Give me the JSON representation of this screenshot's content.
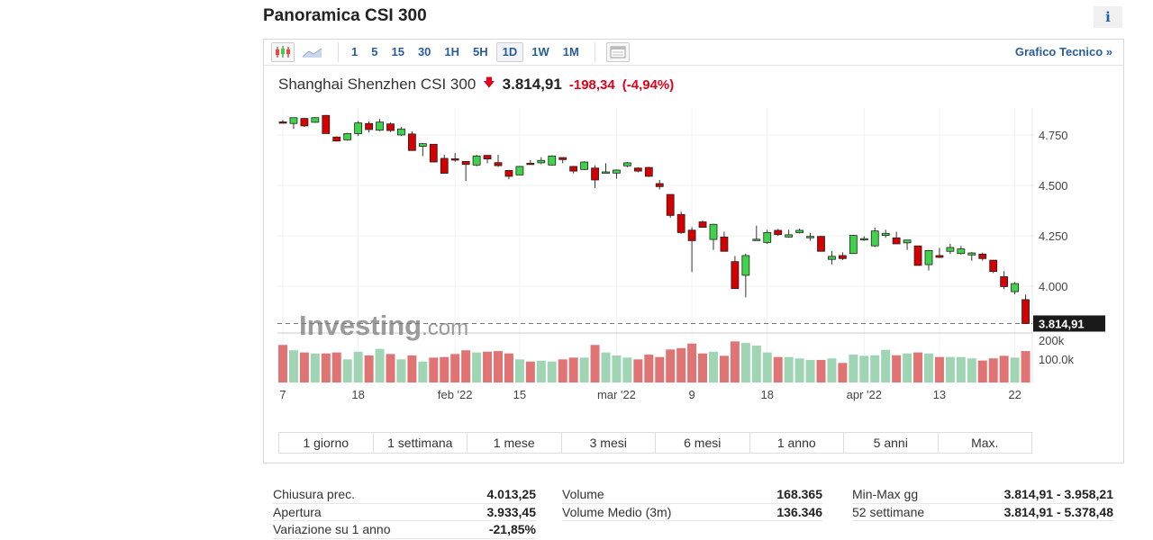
{
  "header": {
    "title": "Panoramica CSI 300",
    "info_label": "i"
  },
  "toolbar": {
    "intervals": [
      "1",
      "5",
      "15",
      "30",
      "1H",
      "5H",
      "1D",
      "1W",
      "1M"
    ],
    "active": "1D",
    "tech_link": "Grafico Tecnico »"
  },
  "quote": {
    "name": "Shanghai Shenzhen CSI 300",
    "price": "3.814,91",
    "change": "-198,34",
    "change_pct": "(-4,94%)",
    "direction": "down"
  },
  "colors": {
    "up": "#3fd34a",
    "down": "#d40000",
    "vol_up": "#9fd4b4",
    "vol_down": "#e07474",
    "link": "#2a5c9a",
    "negative": "#e0001b"
  },
  "chart_data": {
    "type": "candlestick",
    "y_ticks": [
      "4.750",
      "4.500",
      "4.250",
      "4.000"
    ],
    "y_tick_values": [
      4750,
      4500,
      4250,
      4000
    ],
    "last_price_label": "3.814,91",
    "last_price": 3814.91,
    "volume_ticks": [
      "200k",
      "100.0k"
    ],
    "volume_tick_values": [
      200,
      100
    ],
    "x_labels": [
      {
        "i": 0,
        "t": "7"
      },
      {
        "i": 7,
        "t": "18"
      },
      {
        "i": 16,
        "t": "feb '22"
      },
      {
        "i": 22,
        "t": "15"
      },
      {
        "i": 31,
        "t": "mar '22"
      },
      {
        "i": 38,
        "t": "9"
      },
      {
        "i": 45,
        "t": "18"
      },
      {
        "i": 54,
        "t": "apr '22"
      },
      {
        "i": 61,
        "t": "13"
      },
      {
        "i": 68,
        "t": "22"
      }
    ],
    "ohlc": [
      [
        4815,
        4824,
        4812,
        4813
      ],
      [
        4807,
        4836,
        4780,
        4836
      ],
      [
        4832,
        4836,
        4790,
        4795
      ],
      [
        4813,
        4839,
        4810,
        4836
      ],
      [
        4847,
        4850,
        4757,
        4757
      ],
      [
        4740,
        4743,
        4718,
        4720
      ],
      [
        4726,
        4760,
        4722,
        4757
      ],
      [
        4757,
        4820,
        4745,
        4810
      ],
      [
        4807,
        4817,
        4762,
        4777
      ],
      [
        4774,
        4830,
        4770,
        4814
      ],
      [
        4805,
        4812,
        4765,
        4772
      ],
      [
        4750,
        4790,
        4745,
        4780
      ],
      [
        4755,
        4768,
        4673,
        4673
      ],
      [
        4694,
        4710,
        4645,
        4707
      ],
      [
        4704,
        4704,
        4616,
        4616
      ],
      [
        4634,
        4652,
        4560,
        4560
      ],
      [
        4632,
        4660,
        4617,
        4630
      ],
      [
        4619,
        4619,
        4522,
        4604
      ],
      [
        4601,
        4652,
        4595,
        4646
      ],
      [
        4649,
        4649,
        4610,
        4631
      ],
      [
        4613,
        4652,
        4592,
        4598
      ],
      [
        4574,
        4577,
        4530,
        4545
      ],
      [
        4552,
        4597,
        4550,
        4594
      ],
      [
        4610,
        4625,
        4605,
        4608
      ],
      [
        4612,
        4640,
        4605,
        4624
      ],
      [
        4601,
        4649,
        4598,
        4646
      ],
      [
        4638,
        4640,
        4610,
        4628
      ],
      [
        4594,
        4597,
        4560,
        4571
      ],
      [
        4579,
        4620,
        4576,
        4616
      ],
      [
        4586,
        4600,
        4487,
        4527
      ],
      [
        4565,
        4610,
        4563,
        4567
      ],
      [
        4561,
        4579,
        4533,
        4576
      ],
      [
        4597,
        4616,
        4590,
        4612
      ],
      [
        4586,
        4590,
        4565,
        4571
      ],
      [
        4589,
        4592,
        4542,
        4545
      ],
      [
        4509,
        4527,
        4480,
        4494
      ],
      [
        4455,
        4455,
        4340,
        4351
      ],
      [
        4356,
        4370,
        4260,
        4266
      ],
      [
        4278,
        4293,
        4070,
        4226
      ],
      [
        4319,
        4325,
        4290,
        4292
      ],
      [
        4232,
        4310,
        4180,
        4307
      ],
      [
        4244,
        4270,
        4173,
        4173
      ],
      [
        4122,
        4150,
        3988,
        3988
      ],
      [
        4054,
        4162,
        3945,
        4152
      ],
      [
        4230,
        4300,
        4228,
        4233
      ],
      [
        4217,
        4280,
        4210,
        4266
      ],
      [
        4277,
        4284,
        4250,
        4256
      ],
      [
        4244,
        4280,
        4240,
        4255
      ],
      [
        4266,
        4286,
        4262,
        4277
      ],
      [
        4240,
        4265,
        4225,
        4247
      ],
      [
        4247,
        4250,
        4173,
        4173
      ],
      [
        4133,
        4175,
        4108,
        4148
      ],
      [
        4152,
        4168,
        4130,
        4137
      ],
      [
        4162,
        4255,
        4160,
        4252
      ],
      [
        4233,
        4248,
        4225,
        4236
      ],
      [
        4200,
        4290,
        4195,
        4274
      ],
      [
        4252,
        4280,
        4240,
        4262
      ],
      [
        4240,
        4270,
        4210,
        4210
      ],
      [
        4215,
        4229,
        4180,
        4229
      ],
      [
        4200,
        4200,
        4103,
        4103
      ],
      [
        4107,
        4180,
        4078,
        4177
      ],
      [
        4152,
        4190,
        4140,
        4143
      ],
      [
        4173,
        4210,
        4160,
        4192
      ],
      [
        4162,
        4200,
        4157,
        4185
      ],
      [
        4155,
        4170,
        4126,
        4165
      ],
      [
        4159,
        4167,
        4127,
        4137
      ],
      [
        4129,
        4130,
        4065,
        4073
      ],
      [
        4047,
        4075,
        3985,
        3998
      ],
      [
        3973,
        4020,
        3960,
        4013
      ],
      [
        3933.45,
        3958.21,
        3814.91,
        3814.91
      ]
    ],
    "volume_k": [
      199,
      172,
      161,
      156,
      156,
      161,
      126,
      165,
      146,
      179,
      153,
      126,
      146,
      115,
      135,
      138,
      153,
      172,
      161,
      165,
      168,
      156,
      126,
      115,
      119,
      115,
      126,
      135,
      135,
      199,
      161,
      146,
      135,
      126,
      150,
      138,
      176,
      183,
      206,
      156,
      165,
      144,
      217,
      209,
      196,
      161,
      138,
      138,
      131,
      123,
      123,
      131,
      108,
      150,
      144,
      147,
      174,
      147,
      156,
      161,
      156,
      138,
      138,
      138,
      131,
      120,
      131,
      144,
      135,
      168
    ],
    "watermark": "Investing.com"
  },
  "ranges": [
    "1 giorno",
    "1 settimana",
    "1 mese",
    "3 mesi",
    "6 mesi",
    "1 anno",
    "5 anni",
    "Max."
  ],
  "stats": {
    "col1": [
      {
        "label": "Chiusura prec.",
        "value": "4.013,25"
      },
      {
        "label": "Apertura",
        "value": "3.933,45"
      },
      {
        "label": "Variazione su 1 anno",
        "value": "-21,85%"
      }
    ],
    "col2": [
      {
        "label": "Volume",
        "value": "168.365"
      },
      {
        "label": "Volume Medio (3m)",
        "value": "136.346"
      }
    ],
    "col3": [
      {
        "label": "Min-Max gg",
        "value": "3.814,91 - 3.958,21"
      },
      {
        "label": "52 settimane",
        "value": "3.814,91 - 5.378,48"
      }
    ]
  }
}
